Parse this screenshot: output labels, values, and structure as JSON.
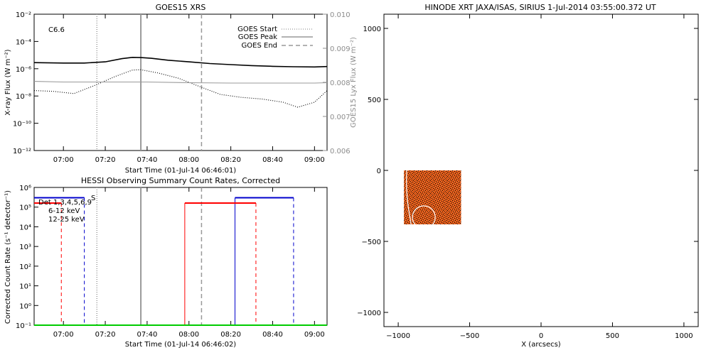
{
  "goes": {
    "title": "GOES15 XRS",
    "xlabel": "Start Time (01-Jul-14 06:46:01)",
    "ylabel": "X-ray Flux (W m⁻²)",
    "ylabel_right": "GOES15 Lyx Flux (W m⁻²)",
    "class_label": "C6.6",
    "legend": [
      "GOES Start",
      "GOES Peak",
      "GOES End"
    ]
  },
  "hessi": {
    "title": "HESSI Observing Summary Count Rates, Corrected",
    "xlabel": "Start Time (01-Jul-14 06:46:02)",
    "ylabel": "Corrected Count Rate (s⁻¹ detector⁻¹)",
    "legend": [
      "Det 1,3,4,5,6,9",
      "6-12 keV",
      "12-25 keV"
    ],
    "small_mark": "S"
  },
  "xrt": {
    "title": "HINODE XRT JAXA/ISAS, SIRIUS   1-Jul-2014 03:55:00.372 UT",
    "xlabel": "X (arcsecs)"
  },
  "chart_data": [
    {
      "type": "line",
      "title": "GOES15 XRS",
      "xlabel": "Start Time (01-Jul-14 06:46:01)",
      "ylabel": "X-ray Flux (W m⁻²)",
      "ylabel_right": "GOES15 Lyx Flux (W m⁻²)",
      "yscale": "log",
      "xlim": [
        "06:46",
        "09:06"
      ],
      "ylim": [
        1e-12,
        0.01
      ],
      "ylim_right": [
        0.006,
        0.01
      ],
      "xticks": [
        "07:00",
        "07:20",
        "07:40",
        "08:00",
        "08:20",
        "08:40",
        "09:00"
      ],
      "yticks": [
        "10⁻¹²",
        "10⁻¹⁰",
        "10⁻⁸",
        "10⁻⁶",
        "10⁻⁴",
        "10⁻²"
      ],
      "yticks_right": [
        "0.006",
        "0.007",
        "0.008",
        "0.009",
        "0.010"
      ],
      "annotation": "C6.6",
      "vlines": {
        "GOES Start": "07:16",
        "GOES Peak": "07:37",
        "GOES End": "08:06"
      },
      "series": [
        {
          "name": "",
          "style": "solid",
          "color": "#000000",
          "x": [
            "06:46",
            "07:00",
            "07:10",
            "07:20",
            "07:28",
            "07:33",
            "07:37",
            "07:42",
            "07:50",
            "08:00",
            "08:10",
            "08:20",
            "08:30",
            "08:40",
            "08:50",
            "09:00",
            "09:06"
          ],
          "y": [
            2.8e-06,
            2.6e-06,
            2.6e-06,
            3.2e-06,
            5.5e-06,
            6.8e-06,
            6.6e-06,
            5.8e-06,
            4.2e-06,
            3.2e-06,
            2.4e-06,
            2e-06,
            1.7e-06,
            1.5e-06,
            1.4e-06,
            1.35e-06,
            1.45e-06
          ]
        },
        {
          "name": "",
          "style": "dotted",
          "color": "#000000",
          "x": [
            "06:46",
            "06:55",
            "07:05",
            "07:15",
            "07:25",
            "07:33",
            "07:37",
            "07:45",
            "07:55",
            "08:05",
            "08:15",
            "08:25",
            "08:35",
            "08:45",
            "08:52",
            "09:00",
            "09:06"
          ],
          "y": [
            2.5e-08,
            2.2e-08,
            1.5e-08,
            6e-08,
            2.8e-07,
            8e-07,
            8.5e-07,
            5e-07,
            2e-07,
            5e-08,
            1.3e-08,
            8e-09,
            6e-09,
            3.5e-09,
            1.5e-09,
            3.5e-09,
            2.5e-08
          ]
        },
        {
          "name": "",
          "style": "solid",
          "color": "#999999",
          "axis": "right",
          "x": [
            "06:46",
            "07:00",
            "07:20",
            "07:40",
            "08:00",
            "08:20",
            "08:40",
            "09:00",
            "09:06"
          ],
          "y": [
            0.00803,
            0.00801,
            0.00801,
            0.00801,
            0.00799,
            0.00798,
            0.00798,
            0.00798,
            0.00799
          ]
        }
      ]
    },
    {
      "type": "line",
      "title": "HESSI Observing Summary Count Rates, Corrected",
      "xlabel": "Start Time (01-Jul-14 06:46:02)",
      "ylabel": "Corrected Count Rate (s⁻¹ detector⁻¹)",
      "yscale": "log",
      "xlim": [
        "06:46",
        "09:06"
      ],
      "ylim": [
        0.1,
        1000000.0
      ],
      "xticks": [
        "07:00",
        "07:20",
        "07:40",
        "08:00",
        "08:20",
        "08:40",
        "09:00"
      ],
      "yticks": [
        "10⁻¹",
        "10⁰",
        "10¹",
        "10²",
        "10³",
        "10⁴",
        "10⁵",
        "10⁶"
      ],
      "legend": [
        "Det 1,3,4,5,6,9",
        "6-12 keV",
        "12-25 keV"
      ],
      "vlines": {
        "GOES Start": "07:16",
        "GOES Peak": "07:37",
        "GOES End": "08:06"
      },
      "series": [
        {
          "name": "",
          "color": "#0000cc",
          "segments": [
            {
              "x": [
                "06:46",
                "07:10"
              ],
              "y": 300000.0
            },
            {
              "x": [
                "08:22",
                "08:50"
              ],
              "y": 300000.0
            }
          ],
          "gaps_at": [
            "07:10",
            "08:22",
            "08:50"
          ]
        },
        {
          "name": "",
          "color": "#ff0000",
          "segments": [
            {
              "x": [
                "06:46",
                "06:59"
              ],
              "y": 160000.0
            },
            {
              "x": [
                "07:58",
                "08:32"
              ],
              "y": 160000.0
            }
          ],
          "gaps_at": [
            "06:59",
            "07:58",
            "08:32"
          ]
        },
        {
          "name": "12-25 keV",
          "color": "#00cc00",
          "segments": [
            {
              "x": [
                "06:46",
                "09:06"
              ],
              "y": 0.1
            }
          ]
        }
      ]
    },
    {
      "type": "heatmap",
      "title": "HINODE XRT JAXA/ISAS, SIRIUS   1-Jul-2014 03:55:00.372 UT",
      "xlabel": "X (arcsecs)",
      "xlim": [
        -1100,
        1100
      ],
      "ylim": [
        -1100,
        1100
      ],
      "xticks": [
        "−1000",
        "−500",
        "0",
        "500",
        "1000"
      ],
      "yticks": [
        "−1000",
        "−500",
        "0",
        "500",
        "1000"
      ],
      "image_extent": {
        "x": [
          -960,
          -560
        ],
        "y": [
          -380,
          0
        ]
      },
      "colormap": "orange-black"
    }
  ]
}
